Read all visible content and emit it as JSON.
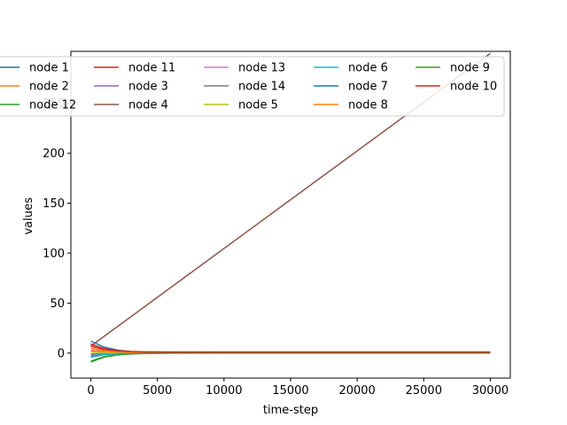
{
  "chart_data": {
    "type": "line",
    "xlabel": "time-step",
    "ylabel": "values",
    "xlim": [
      -1500,
      31500
    ],
    "ylim": [
      -25,
      302
    ],
    "xticks": [
      0,
      5000,
      10000,
      15000,
      20000,
      25000,
      30000
    ],
    "xtick_labels": [
      "0",
      "5000",
      "10000",
      "15000",
      "20000",
      "25000",
      "30000"
    ],
    "yticks": [
      0,
      50,
      100,
      150,
      200,
      250
    ],
    "ytick_labels": [
      "0",
      "50",
      "100",
      "150",
      "200",
      "250"
    ],
    "grid": false,
    "legend": {
      "placement": "top",
      "columns": 5
    },
    "series": [
      {
        "name": "node 1",
        "color": "#1f77b4",
        "x": [
          0,
          1000,
          2000,
          3000,
          4000,
          6000,
          10000,
          30000
        ],
        "y": [
          -4,
          -1.5,
          -0.6,
          -0.2,
          0,
          0,
          0,
          0
        ]
      },
      {
        "name": "node 2",
        "color": "#ff7f0e",
        "x": [
          0,
          1000,
          2000,
          3000,
          4000,
          6000,
          10000,
          30000
        ],
        "y": [
          3,
          1.2,
          0.5,
          0.2,
          0.1,
          0,
          0,
          0
        ]
      },
      {
        "name": "node 12",
        "color": "#2ca02c",
        "x": [
          0,
          1000,
          2000,
          3000,
          4000,
          6000,
          10000,
          30000
        ],
        "y": [
          -8,
          -3.5,
          -1.4,
          -0.5,
          -0.2,
          0,
          0,
          0
        ]
      },
      {
        "name": "node 11",
        "color": "#d62728",
        "x": [
          0,
          1000,
          2000,
          3000,
          4000,
          6000,
          10000,
          30000
        ],
        "y": [
          7,
          3.5,
          2,
          1.4,
          1.1,
          1,
          1,
          1
        ]
      },
      {
        "name": "node 3",
        "color": "#9467bd",
        "x": [
          0,
          1000,
          2000,
          3000,
          4000,
          6000,
          10000,
          30000
        ],
        "y": [
          -2,
          -0.8,
          -0.3,
          -0.1,
          0,
          0,
          0,
          0
        ]
      },
      {
        "name": "node 4",
        "color": "#8c564b",
        "x": [
          0,
          30000
        ],
        "y": [
          7,
          300
        ]
      },
      {
        "name": "node 13",
        "color": "#e377c2",
        "x": [
          0,
          1000,
          2000,
          3000,
          4000,
          6000,
          10000,
          30000
        ],
        "y": [
          2,
          0.8,
          0.3,
          0.1,
          0,
          0,
          0,
          0
        ]
      },
      {
        "name": "node 14",
        "color": "#7f7f7f",
        "x": [
          0,
          1000,
          2000,
          3000,
          4000,
          6000,
          10000,
          30000
        ],
        "y": [
          -1,
          -0.4,
          -0.2,
          -0.1,
          0,
          0,
          0,
          0
        ]
      },
      {
        "name": "node 5",
        "color": "#bcbd22",
        "x": [
          0,
          1000,
          2000,
          3000,
          4000,
          6000,
          10000,
          30000
        ],
        "y": [
          1,
          0.5,
          0.2,
          0.1,
          0,
          0,
          0,
          0
        ]
      },
      {
        "name": "node 6",
        "color": "#17becf",
        "x": [
          0,
          1000,
          2000,
          3000,
          4000,
          6000,
          10000,
          30000
        ],
        "y": [
          -3,
          -1.2,
          -0.5,
          -0.2,
          0,
          0,
          0,
          0
        ]
      },
      {
        "name": "node 7",
        "color": "#1f77b4",
        "x": [
          0,
          1000,
          2000,
          3000,
          4000,
          6000,
          10000,
          30000
        ],
        "y": [
          12,
          6,
          3,
          1.5,
          0.7,
          0.2,
          0,
          0
        ]
      },
      {
        "name": "node 8",
        "color": "#ff7f0e",
        "x": [
          0,
          1000,
          2000,
          3000,
          4000,
          6000,
          10000,
          30000
        ],
        "y": [
          5,
          2.2,
          1,
          0.5,
          0.3,
          0.1,
          0,
          0
        ]
      },
      {
        "name": "node 9",
        "color": "#2ca02c",
        "x": [
          0,
          1000,
          2000,
          3000,
          4000,
          6000,
          10000,
          30000
        ],
        "y": [
          -9,
          -4,
          -1.8,
          -0.8,
          -0.4,
          -0.1,
          0,
          0
        ]
      },
      {
        "name": "node 10",
        "color": "#d62728",
        "x": [
          0,
          1000,
          2000,
          3000,
          4000,
          6000,
          10000,
          30000
        ],
        "y": [
          9,
          4.5,
          2.5,
          1.6,
          1.2,
          1,
          1,
          1
        ]
      }
    ]
  }
}
